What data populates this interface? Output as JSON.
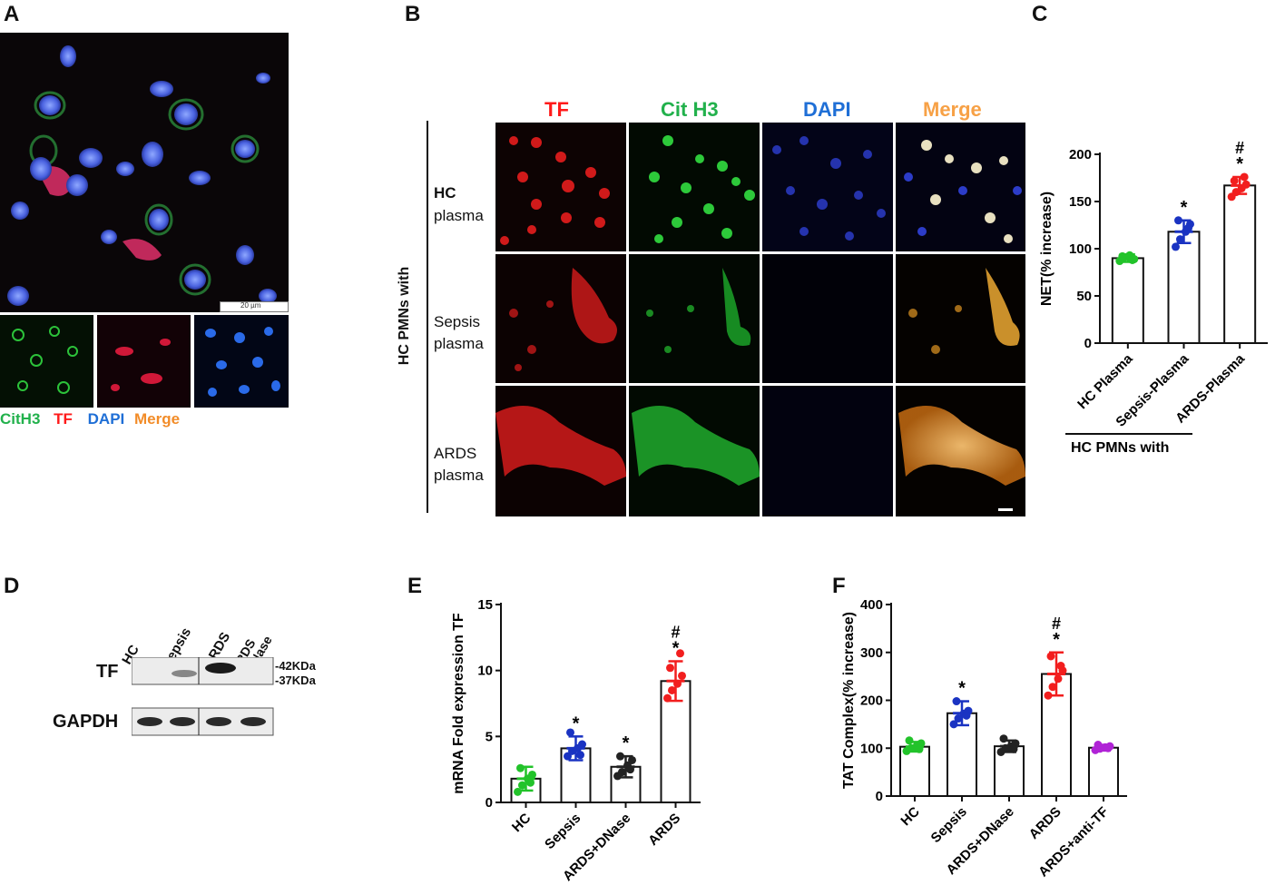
{
  "panels": {
    "a": {
      "label": "A",
      "scale_bar": "20 µm",
      "legend": [
        {
          "text": "CitH3",
          "color": "#22b14c"
        },
        {
          "text": "TF",
          "color": "#ff1a1a"
        },
        {
          "text": "DAPI",
          "color": "#1f6fd6"
        },
        {
          "text": "Merge",
          "color": "#f28c28"
        }
      ]
    },
    "b": {
      "label": "B",
      "columns": [
        {
          "text": "TF",
          "color": "#ff1a1a"
        },
        {
          "text": "Cit H3",
          "color": "#22b14c"
        },
        {
          "text": "DAPI",
          "color": "#1f6fd6"
        },
        {
          "text": "Merge",
          "color": "#f7a146"
        }
      ],
      "rows": [
        {
          "l1": "HC",
          "l2": "plasma"
        },
        {
          "l1": "Sepsis",
          "l2": "plasma"
        },
        {
          "l1": "ARDS",
          "l2": "plasma"
        }
      ],
      "side_label": "HC PMNs with"
    },
    "c": {
      "label": "C"
    },
    "d": {
      "label": "D",
      "lanes": [
        "HC",
        "Sepsis",
        "ARDS",
        "ARDS +DNase"
      ],
      "rows": [
        "TF",
        "GAPDH"
      ],
      "markers": [
        "-42KDa",
        "-37KDa"
      ]
    },
    "e": {
      "label": "E"
    },
    "f": {
      "label": "F"
    }
  },
  "chart_data": [
    {
      "id": "C",
      "type": "bar",
      "categories": [
        "HC Plasma",
        "Sepsis-Plasma",
        "ARDS-Plasma"
      ],
      "values": [
        90,
        118,
        167
      ],
      "errors": [
        4,
        12,
        9
      ],
      "points": [
        [
          87,
          91,
          93,
          89,
          92,
          88
        ],
        [
          102,
          110,
          118,
          126,
          130,
          122
        ],
        [
          155,
          160,
          164,
          168,
          172,
          176
        ]
      ],
      "colors": [
        "#22c32a",
        "#1a33c2",
        "#f21e1e"
      ],
      "annotations": [
        "",
        "*",
        "#*"
      ],
      "ylabel": "NET(% increase)",
      "group_label": "HC PMNs with",
      "yticks": [
        0,
        50,
        100,
        150,
        200
      ],
      "ylim": [
        0,
        200
      ]
    },
    {
      "id": "E",
      "type": "bar",
      "categories": [
        "HC",
        "Sepsis",
        "ARDS+DNase",
        "ARDS"
      ],
      "values": [
        1.8,
        4.1,
        2.7,
        9.2
      ],
      "errors": [
        0.9,
        0.9,
        0.8,
        1.5
      ],
      "points": [
        [
          0.8,
          1.3,
          1.8,
          2.1,
          2.6,
          1.5
        ],
        [
          3.5,
          3.9,
          4.1,
          4.4,
          5.3,
          3.6
        ],
        [
          2.0,
          2.3,
          2.8,
          3.2,
          3.5,
          2.5
        ],
        [
          7.9,
          8.5,
          9.0,
          9.6,
          10.2,
          11.3
        ]
      ],
      "colors": [
        "#22c32a",
        "#1a33c2",
        "#222222",
        "#f21e1e"
      ],
      "annotations": [
        "",
        "*",
        "*",
        "#*"
      ],
      "ylabel": "mRNA Fold expression TF",
      "yticks": [
        0,
        5,
        10,
        15
      ],
      "ylim": [
        0,
        15
      ]
    },
    {
      "id": "F",
      "type": "bar",
      "categories": [
        "HC",
        "Sepsis",
        "ARDS+DNase",
        "ARDS",
        "ARDS+anti-TF"
      ],
      "values": [
        103,
        173,
        104,
        255,
        101
      ],
      "errors": [
        10,
        25,
        12,
        45,
        6
      ],
      "points": [
        [
          94,
          100,
          104,
          110,
          116,
          98
        ],
        [
          150,
          162,
          172,
          178,
          198,
          168
        ],
        [
          92,
          100,
          104,
          110,
          120,
          98
        ],
        [
          210,
          228,
          245,
          262,
          292,
          272
        ],
        [
          96,
          99,
          102,
          104,
          107,
          100
        ]
      ],
      "colors": [
        "#22c32a",
        "#1a33c2",
        "#222222",
        "#f21e1e",
        "#b023d6"
      ],
      "annotations": [
        "",
        "*",
        "",
        "#*",
        ""
      ],
      "ylabel": "TAT Complex(% increase)",
      "yticks": [
        0,
        100,
        200,
        300,
        400
      ],
      "ylim": [
        0,
        400
      ]
    }
  ]
}
